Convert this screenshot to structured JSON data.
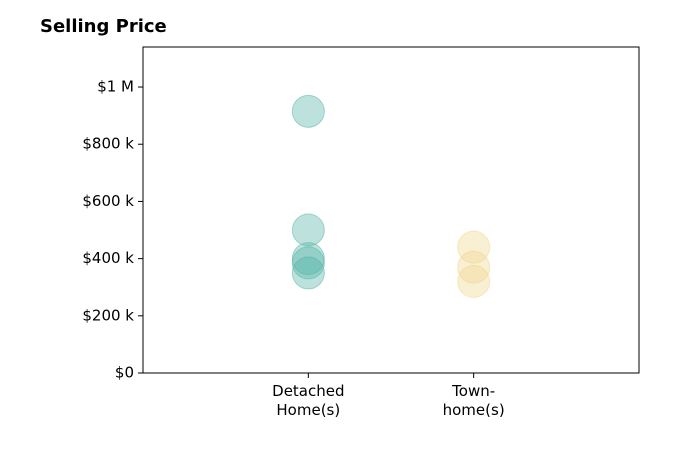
{
  "chart_data": {
    "type": "strip",
    "title": "Selling Price",
    "categories": [
      "Detached\nHome(s)",
      "Town-\nhome(s)"
    ],
    "values": [
      [
        915000,
        500000,
        400000,
        385000,
        350000
      ],
      [
        440000,
        370000,
        320000
      ]
    ],
    "colors": [
      "#52b3a6",
      "#f0d58c"
    ],
    "xlim": [
      0,
      3
    ],
    "ylim": [
      0,
      1140000
    ],
    "yticks": [
      {
        "value": 0,
        "label": "$0"
      },
      {
        "value": 200000,
        "label": "$200 k"
      },
      {
        "value": 400000,
        "label": "$400 k"
      },
      {
        "value": 600000,
        "label": "$600 k"
      },
      {
        "value": 800000,
        "label": "$800 k"
      },
      {
        "value": 1000000,
        "label": "$1 M"
      }
    ]
  }
}
